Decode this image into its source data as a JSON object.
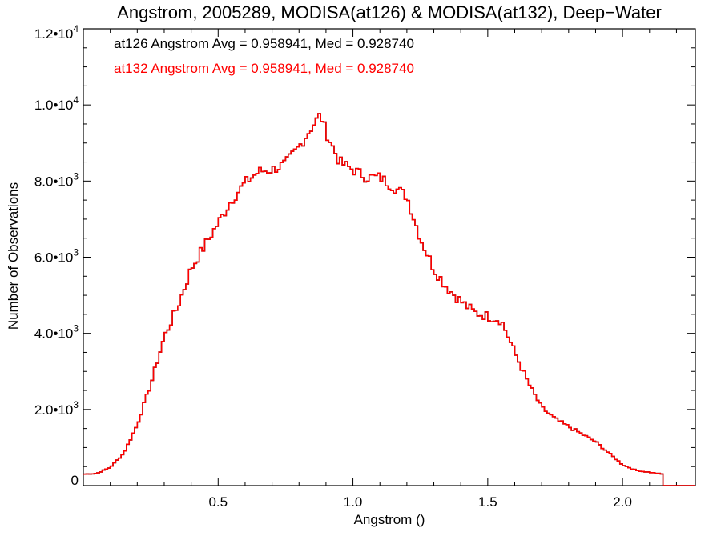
{
  "chart_data": {
    "type": "histogram",
    "title": "Angstrom, 2005289, MODISA(at126) & MODISA(at132), Deep−Water",
    "xlabel": "Angstrom ()",
    "ylabel": "Number of Observations",
    "xlim": [
      0.0,
      2.27
    ],
    "ylim": [
      0,
      12000
    ],
    "x_ticks": [
      {
        "value": 0.5,
        "label": "0.5"
      },
      {
        "value": 1.0,
        "label": "1.0"
      },
      {
        "value": 1.5,
        "label": "1.5"
      },
      {
        "value": 2.0,
        "label": "2.0"
      }
    ],
    "y_ticks": [
      {
        "value": 0,
        "mantissa": "0",
        "exp": ""
      },
      {
        "value": 2000,
        "mantissa": "2.0•10",
        "exp": "3"
      },
      {
        "value": 4000,
        "mantissa": "4.0•10",
        "exp": "3"
      },
      {
        "value": 6000,
        "mantissa": "6.0•10",
        "exp": "3"
      },
      {
        "value": 8000,
        "mantissa": "8.0•10",
        "exp": "3"
      },
      {
        "value": 10000,
        "mantissa": "1.0•10",
        "exp": "4"
      },
      {
        "value": 12000,
        "mantissa": "1.2•10",
        "exp": "4"
      }
    ],
    "grid": false,
    "annotations": [
      {
        "text": "at126 Angstrom Avg = 0.958941, Med = 0.928740",
        "color": "#000000"
      },
      {
        "text": "at132 Angstrom Avg = 0.958941, Med = 0.928740",
        "color": "#ff0000"
      }
    ],
    "series": [
      {
        "color_at126": "#000000",
        "color": "#ff0000",
        "profile_x": [
          0.0,
          0.05,
          0.1,
          0.15,
          0.2,
          0.25,
          0.3,
          0.35,
          0.4,
          0.45,
          0.5,
          0.55,
          0.6,
          0.65,
          0.7,
          0.75,
          0.8,
          0.85,
          0.88,
          0.9,
          0.95,
          1.0,
          1.05,
          1.1,
          1.15,
          1.2,
          1.25,
          1.3,
          1.35,
          1.4,
          1.45,
          1.5,
          1.55,
          1.6,
          1.65,
          1.7,
          1.75,
          1.8,
          1.85,
          1.9,
          1.95,
          2.0,
          2.05,
          2.1,
          2.15,
          2.151,
          2.27
        ],
        "profile_y": [
          300,
          320,
          480,
          850,
          1600,
          2650,
          3900,
          4700,
          5700,
          6300,
          6900,
          7500,
          7950,
          8250,
          8300,
          8450,
          8900,
          9450,
          9750,
          9300,
          8500,
          8300,
          8100,
          8100,
          7850,
          7600,
          6500,
          5700,
          5200,
          4850,
          4550,
          4450,
          4350,
          3500,
          2700,
          2050,
          1750,
          1550,
          1350,
          1150,
          850,
          550,
          400,
          350,
          300,
          0,
          0
        ],
        "bin_width": 0.01
      }
    ]
  }
}
